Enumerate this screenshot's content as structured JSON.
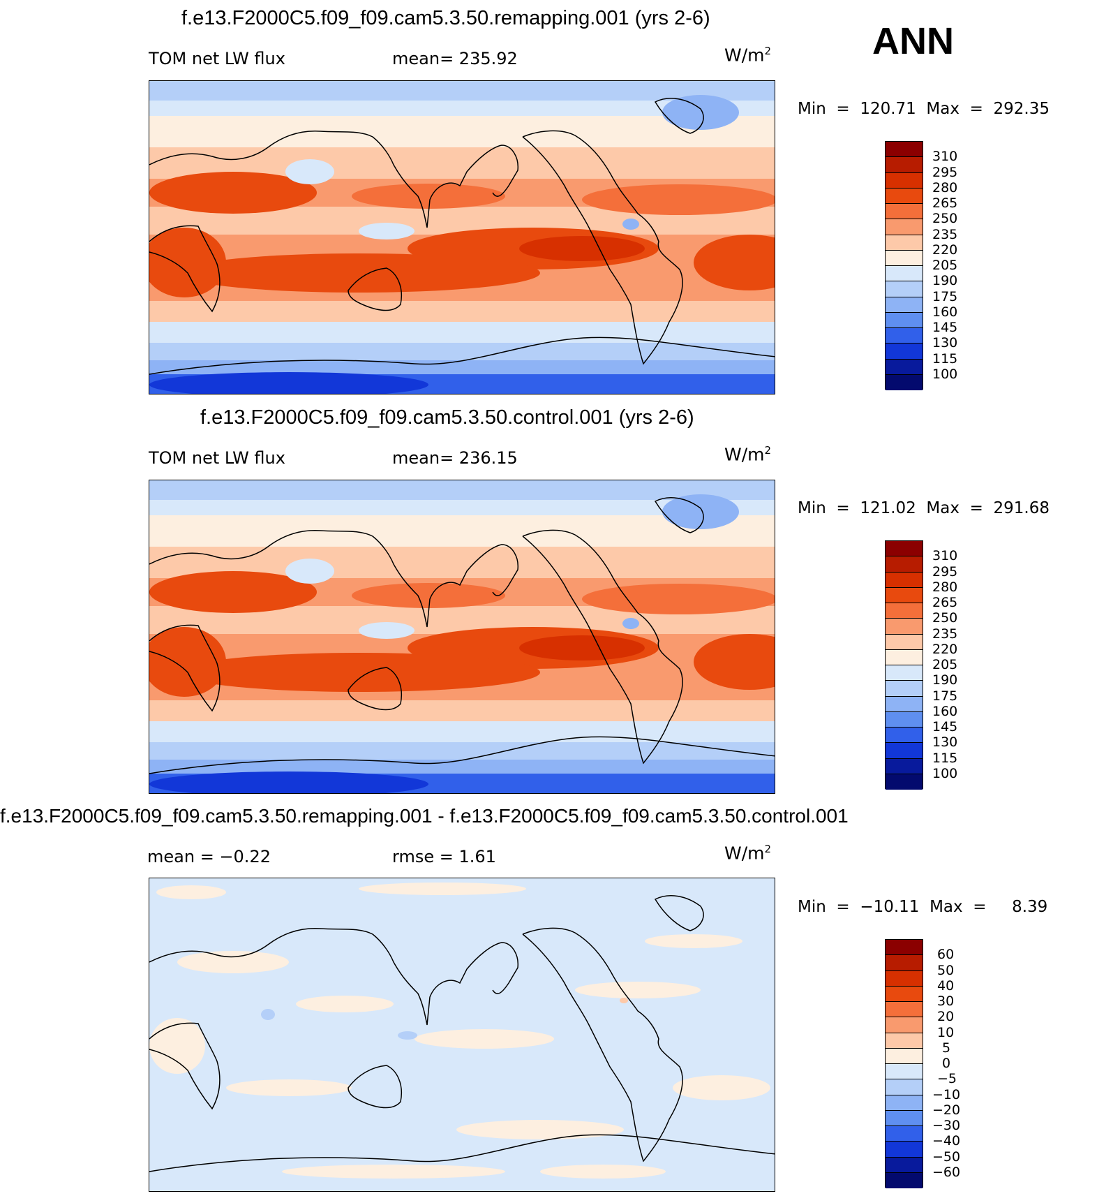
{
  "season": "ANN",
  "panels": [
    {
      "title": "f.e13.F2000C5.f09_f09.cam5.3.50.remapping.001 (yrs 2-6)",
      "left_label": "TOM  net  LW  flux",
      "center_label": "mean=  235.92",
      "units": "W/m",
      "units_exp": "2",
      "minmax": "Min  =  120.71  Max  =  292.35",
      "colorbar": {
        "levels": [
          "310",
          "295",
          "280",
          "265",
          "250",
          "235",
          "220",
          "205",
          "190",
          "175",
          "160",
          "145",
          "130",
          "115",
          "100"
        ],
        "colors": [
          "#8b0000",
          "#b71c00",
          "#d73000",
          "#e84a0e",
          "#f46f3a",
          "#f99a6e",
          "#fdc9a9",
          "#fdefe0",
          "#d8e8fa",
          "#b4cff8",
          "#8eb3f5",
          "#5f8ff0",
          "#3160ea",
          "#1237d8",
          "#081a9c",
          "#030a6e"
        ]
      },
      "map_style": "full"
    },
    {
      "title": "f.e13.F2000C5.f09_f09.cam5.3.50.control.001 (yrs 2-6)",
      "left_label": "TOM  net  LW  flux",
      "center_label": "mean=  236.15",
      "units": "W/m",
      "units_exp": "2",
      "minmax": "Min  =  121.02  Max  =  291.68",
      "colorbar": {
        "levels": [
          "310",
          "295",
          "280",
          "265",
          "250",
          "235",
          "220",
          "205",
          "190",
          "175",
          "160",
          "145",
          "130",
          "115",
          "100"
        ],
        "colors": [
          "#8b0000",
          "#b71c00",
          "#d73000",
          "#e84a0e",
          "#f46f3a",
          "#f99a6e",
          "#fdc9a9",
          "#fdefe0",
          "#d8e8fa",
          "#b4cff8",
          "#8eb3f5",
          "#5f8ff0",
          "#3160ea",
          "#1237d8",
          "#081a9c",
          "#030a6e"
        ]
      },
      "map_style": "full"
    },
    {
      "title": "f.e13.F2000C5.f09_f09.cam5.3.50.remapping.001 - f.e13.F2000C5.f09_f09.cam5.3.50.control.001",
      "left_label": "mean  =    −0.22",
      "center_label": "rmse  =     1.61",
      "units": "W/m",
      "units_exp": "2",
      "minmax": "Min  =  −10.11  Max  =     8.39",
      "colorbar": {
        "levels": [
          "60",
          "50",
          "40",
          "30",
          "20",
          "10",
          "5",
          "0",
          "−5",
          "−10",
          "−20",
          "−30",
          "−40",
          "−50",
          "−60"
        ],
        "colors": [
          "#8b0000",
          "#b71c00",
          "#d73000",
          "#e84a0e",
          "#f46f3a",
          "#f99a6e",
          "#fdc9a9",
          "#fdefe0",
          "#d8e8fa",
          "#b4cff8",
          "#8eb3f5",
          "#5f8ff0",
          "#3160ea",
          "#1237d8",
          "#081a9c",
          "#030a6e"
        ]
      },
      "map_style": "diff"
    }
  ]
}
